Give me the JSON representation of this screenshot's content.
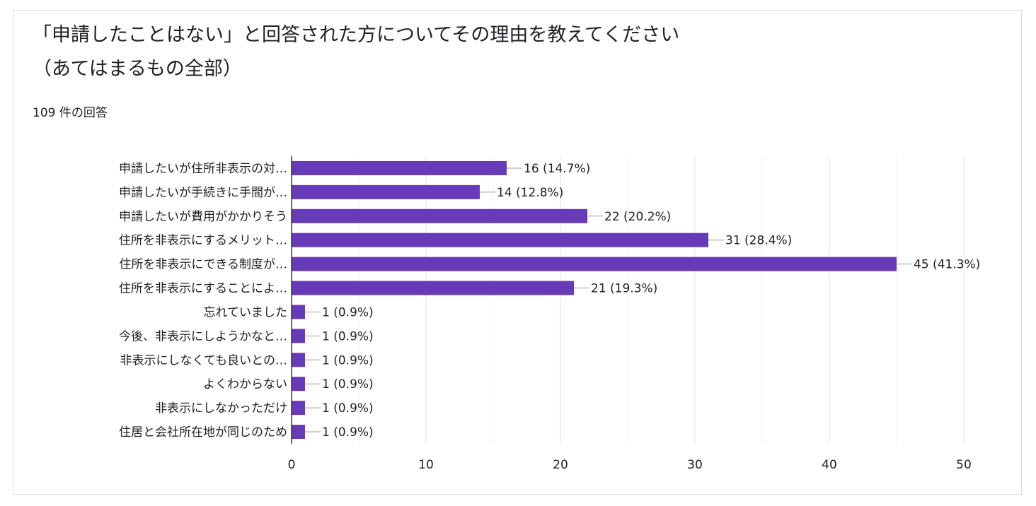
{
  "header": {
    "title_line1": "「申請したことはない」と回答された方についてその理由を教えてください",
    "title_line2": "（あてはまるもの全部）",
    "response_count": "109 件の回答"
  },
  "colors": {
    "bar": "#673ab7",
    "grid": "#e6e6e6",
    "axis": "#333333",
    "connector": "#9e9e9e"
  },
  "chart_data": {
    "type": "bar",
    "orientation": "horizontal",
    "categories": [
      "申請したいが住所非表示の対…",
      "申請したいが手続きに手間が…",
      "申請したいが費用がかかりそう",
      "住所を非表示にするメリット…",
      "住所を非表示にできる制度が…",
      "住所を非表示にすることによ…",
      "忘れていました",
      "今後、非表示にしようかなと…",
      "非表示にしなくても良いとの…",
      "よくわからない",
      "非表示にしなかっただけ",
      "住居と会社所在地が同じのため"
    ],
    "values": [
      16,
      14,
      22,
      31,
      45,
      21,
      1,
      1,
      1,
      1,
      1,
      1
    ],
    "value_labels": [
      "16 (14.7%)",
      "14 (12.8%)",
      "22 (20.2%)",
      "31 (28.4%)",
      "45 (41.3%)",
      "21 (19.3%)",
      "1 (0.9%)",
      "1 (0.9%)",
      "1 (0.9%)",
      "1 (0.9%)",
      "1 (0.9%)",
      "1 (0.9%)"
    ],
    "xlim": [
      0,
      50
    ],
    "xticks": [
      0,
      10,
      20,
      30,
      40,
      50
    ],
    "xtick_labels": [
      "0",
      "10",
      "20",
      "30",
      "40",
      "50"
    ],
    "grid": true
  }
}
